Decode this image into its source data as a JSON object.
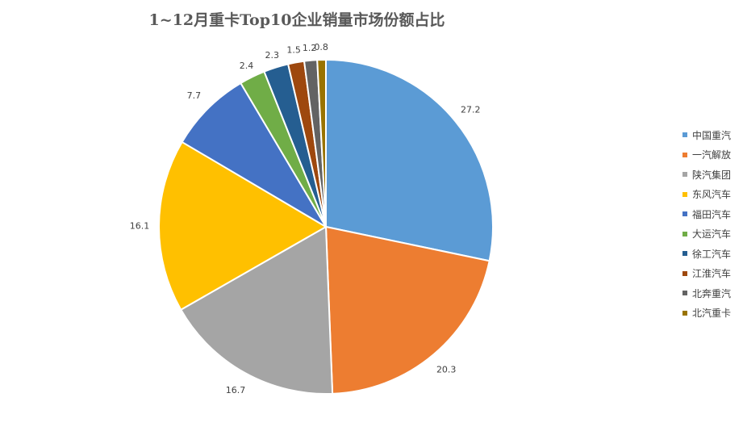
{
  "chart_data": {
    "type": "pie",
    "title": "1~12月重卡Top10企业销量市场份额占比",
    "legend_position": "right",
    "categories": [
      "中国重汽",
      "一汽解放",
      "陕汽集团",
      "东风汽车",
      "福田汽车",
      "大运汽车",
      "徐工汽车",
      "江淮汽车",
      "北奔重汽",
      "北汽重卡"
    ],
    "values": [
      27.2,
      20.3,
      16.7,
      16.1,
      7.7,
      2.4,
      2.3,
      1.5,
      1.2,
      0.8
    ],
    "labels": [
      "27.2",
      "20.3",
      "16.7",
      "16.1",
      "7.7",
      "2.4",
      "2.3",
      "1.5",
      "1.2",
      "0.8"
    ],
    "colors": [
      "#5b9bd5",
      "#ed7d31",
      "#a5a5a5",
      "#ffc000",
      "#4472c4",
      "#70ad47",
      "#255e91",
      "#9e480e",
      "#636363",
      "#997300"
    ]
  }
}
